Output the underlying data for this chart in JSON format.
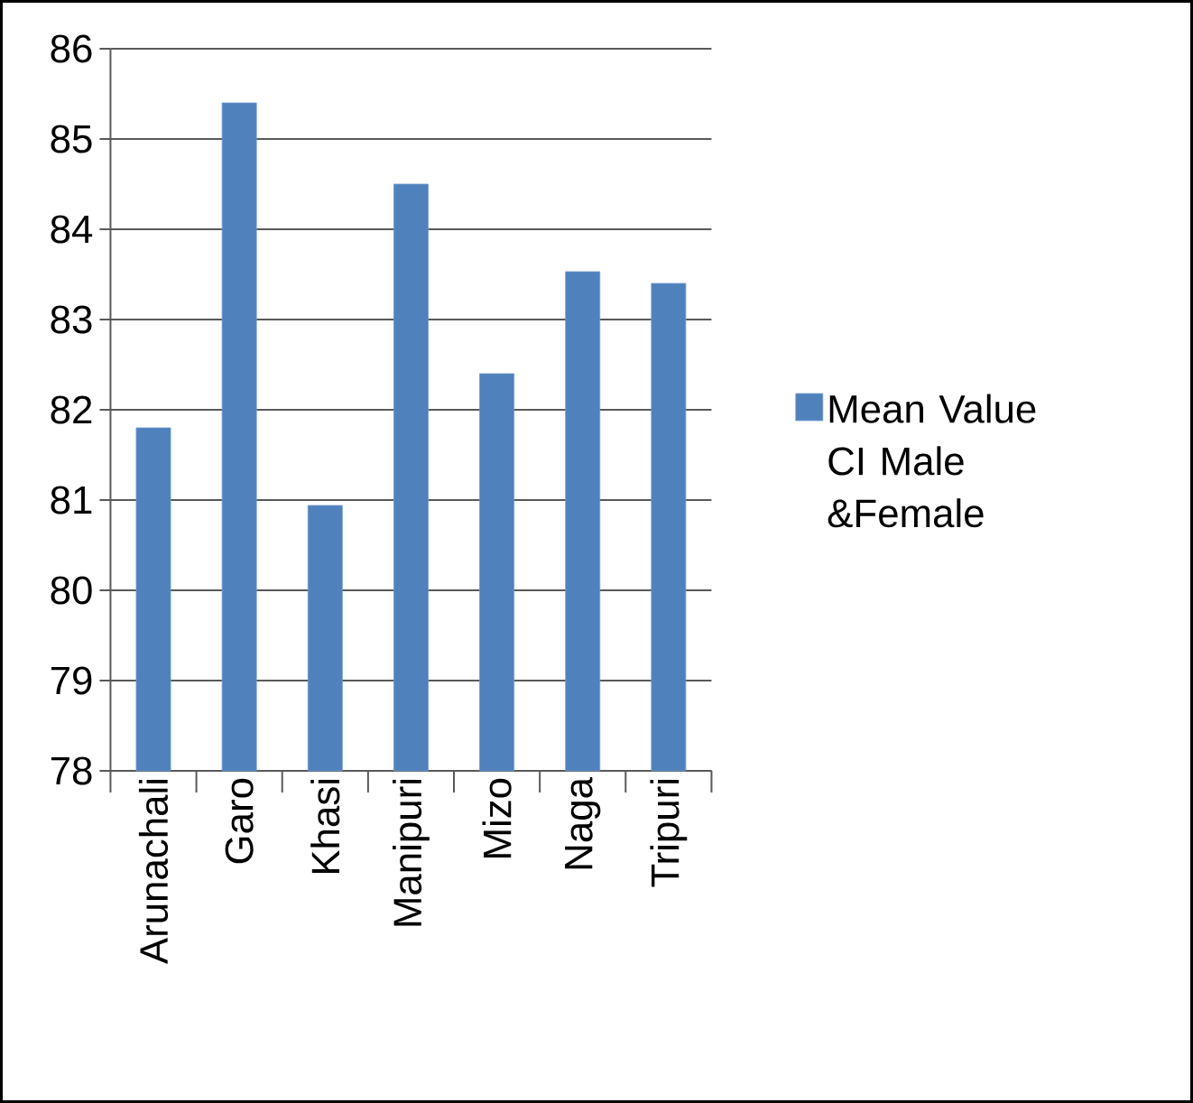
{
  "chart_data": {
    "type": "bar",
    "categories": [
      "Arunachali",
      "Garo",
      "Khasi",
      "Manipuri",
      "Mizo",
      "Naga",
      "Tripuri"
    ],
    "series": [
      {
        "name": "Mean Value CI Male &Female",
        "color": "#4f81bd",
        "values": [
          81.8,
          85.4,
          80.94,
          84.5,
          82.4,
          83.53,
          83.4
        ]
      }
    ],
    "ylim": [
      78,
      86
    ],
    "yticks": [
      78,
      79,
      80,
      81,
      82,
      83,
      84,
      85,
      86
    ],
    "grid": "y",
    "legend": "right"
  }
}
